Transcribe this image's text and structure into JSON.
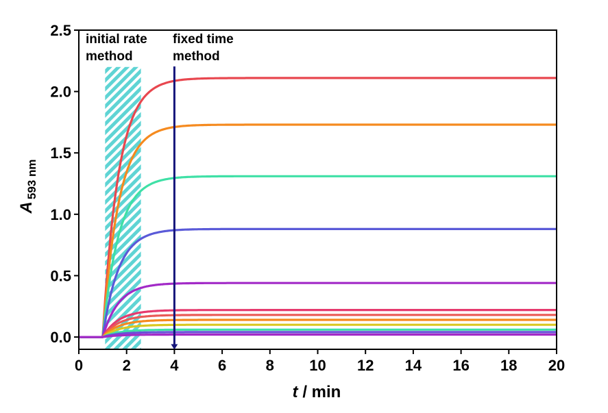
{
  "chart_data": {
    "type": "line",
    "xlabel_italic": "t",
    "xlabel_rest": " / min",
    "ylabel_italic": "A",
    "ylabel_sub": "593 nm",
    "xlim": [
      0,
      20
    ],
    "ylim": [
      -0.1,
      2.5
    ],
    "xticks": [
      0,
      2,
      4,
      6,
      8,
      10,
      12,
      14,
      16,
      18,
      20
    ],
    "yticks": [
      0.0,
      0.5,
      1.0,
      1.5,
      2.0,
      2.5
    ],
    "ytick_labels": [
      "0.0",
      "0.5",
      "1.0",
      "1.5",
      "2.0",
      "2.5"
    ],
    "xtick_labels": [
      "0",
      "2",
      "4",
      "6",
      "8",
      "10",
      "12",
      "14",
      "16",
      "18",
      "20"
    ],
    "onset_time": 1.0,
    "initial_rate_region": [
      1.1,
      2.6
    ],
    "fixed_time_marker": 4,
    "annotations": {
      "initial_rate_line1": "initial rate",
      "initial_rate_line2": "method",
      "fixed_time_line1": "fixed time",
      "fixed_time_line2": "method"
    },
    "series": [
      {
        "plateau": 2.11,
        "color": "#e8474f"
      },
      {
        "plateau": 1.73,
        "color": "#f58a1f"
      },
      {
        "plateau": 1.31,
        "color": "#3fe0a6"
      },
      {
        "plateau": 0.88,
        "color": "#5a5ad8"
      },
      {
        "plateau": 0.44,
        "color": "#a22ac7"
      },
      {
        "plateau": 0.22,
        "color": "#e63a6e"
      },
      {
        "plateau": 0.18,
        "color": "#ea5a56"
      },
      {
        "plateau": 0.14,
        "color": "#f58a1f"
      },
      {
        "plateau": 0.1,
        "color": "#d9c820"
      },
      {
        "plateau": 0.06,
        "color": "#3fe0a6"
      },
      {
        "plateau": 0.04,
        "color": "#6a4fd8"
      },
      {
        "plateau": 0.02,
        "color": "#a22ac7"
      }
    ],
    "grid": false
  }
}
